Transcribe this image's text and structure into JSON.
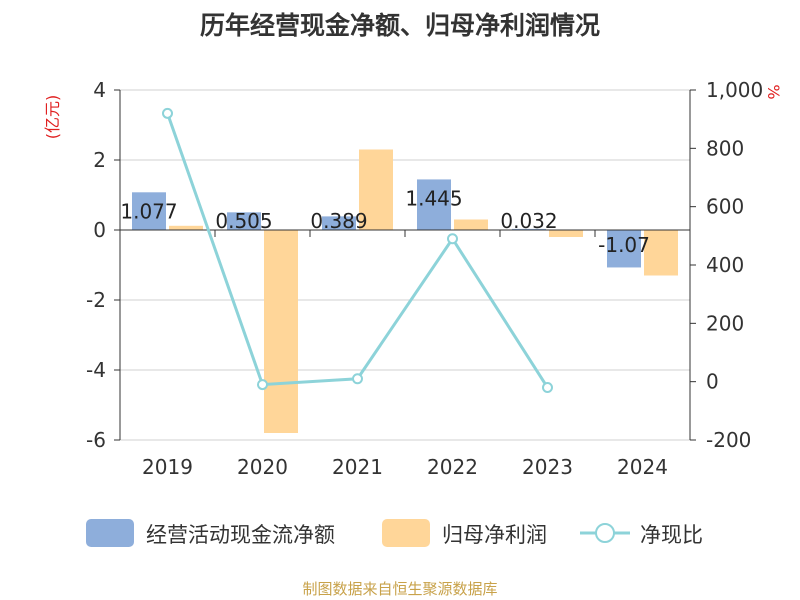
{
  "chart_data": {
    "type": "bar",
    "title": "历年经营现金净额、归母净利润情况",
    "categories": [
      "2019",
      "2020",
      "2021",
      "2022",
      "2023",
      "2024"
    ],
    "series": [
      {
        "name": "经营活动现金流净额",
        "type": "bar",
        "axis": "left",
        "values": [
          1.077,
          0.505,
          0.389,
          1.445,
          0.032,
          -1.07
        ],
        "labels": [
          "1.077",
          "0.505",
          "0.389",
          "1.445",
          "0.032",
          "-1.07"
        ],
        "color": "#8eaedb"
      },
      {
        "name": "归母净利润",
        "type": "bar",
        "axis": "left",
        "values": [
          0.12,
          -5.8,
          2.3,
          0.3,
          -0.2,
          -1.3
        ],
        "color": "#ffd699"
      },
      {
        "name": "净现比",
        "type": "line",
        "axis": "right",
        "values": [
          920,
          -10,
          10,
          490,
          -20,
          null
        ],
        "color": "#8dd3d9"
      }
    ],
    "y_left": {
      "label": "(亿元)",
      "ylim": [
        -6,
        4
      ],
      "ticks": [
        "-6",
        "-4",
        "-2",
        "0",
        "2",
        "4"
      ]
    },
    "y_right": {
      "label": "%",
      "ylim": [
        -200,
        1000
      ],
      "ticks": [
        "-200",
        "0",
        "200",
        "400",
        "600",
        "800",
        "1,000"
      ]
    },
    "grid": true,
    "legend_position": "bottom"
  },
  "source": "制图数据来自恒生聚源数据库"
}
